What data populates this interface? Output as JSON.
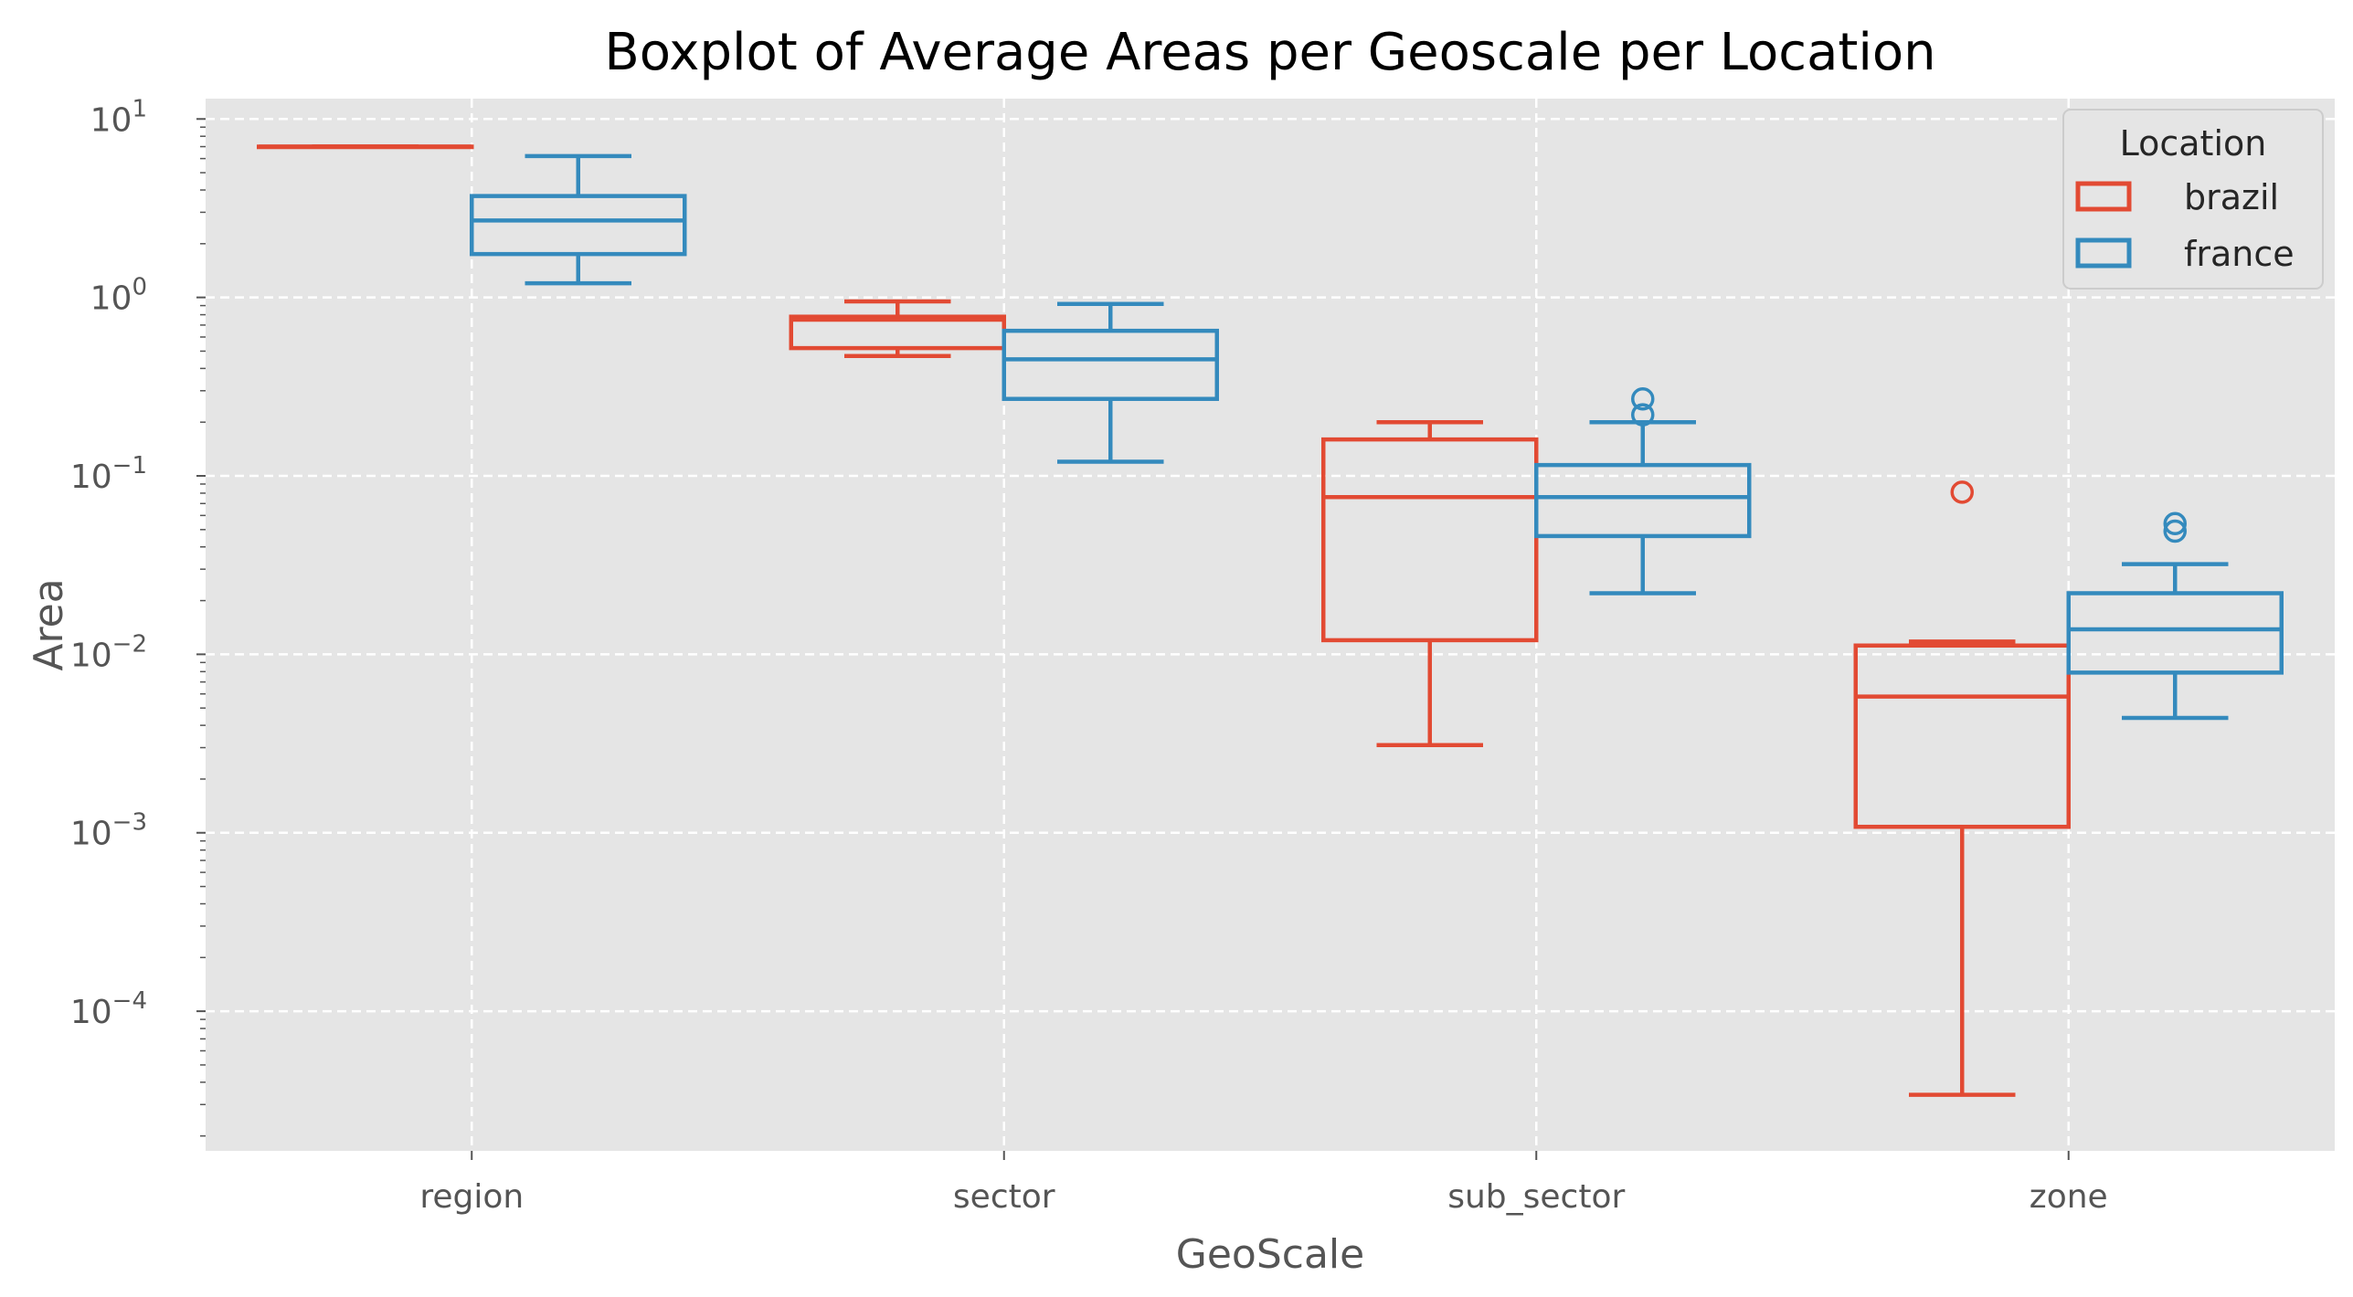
{
  "chart_data": {
    "type": "boxplot",
    "title": "Boxplot of Average Areas per Geoscale per Location",
    "xlabel": "GeoScale",
    "ylabel": "Area",
    "yscale": "log",
    "ylim": [
      1.65e-05,
      13
    ],
    "yticks": [
      {
        "value": 0.0001,
        "base": "10",
        "exp": "−4"
      },
      {
        "value": 0.001,
        "base": "10",
        "exp": "−3"
      },
      {
        "value": 0.01,
        "base": "10",
        "exp": "−2"
      },
      {
        "value": 0.1,
        "base": "10",
        "exp": "−1"
      },
      {
        "value": 1,
        "base": "10",
        "exp": "0"
      },
      {
        "value": 10,
        "base": "10",
        "exp": "1"
      }
    ],
    "grid": true,
    "legend": {
      "title": "Location",
      "placement": "upper right"
    },
    "categories": [
      "region",
      "sector",
      "sub_sector",
      "zone"
    ],
    "series": [
      {
        "name": "brazil",
        "color": "#E24A33",
        "boxes": [
          {
            "whislo": 7.0,
            "q1": 7.0,
            "med": 7.0,
            "q3": 7.0,
            "whishi": 7.0,
            "fliers": []
          },
          {
            "whislo": 0.47,
            "q1": 0.52,
            "med": 0.75,
            "q3": 0.78,
            "whishi": 0.95,
            "fliers": []
          },
          {
            "whislo": 0.0031,
            "q1": 0.012,
            "med": 0.076,
            "q3": 0.16,
            "whishi": 0.2,
            "fliers": []
          },
          {
            "whislo": 3.4e-05,
            "q1": 0.00108,
            "med": 0.0058,
            "q3": 0.0112,
            "whishi": 0.0118,
            "fliers": [
              0.081
            ]
          }
        ]
      },
      {
        "name": "france",
        "color": "#348ABD",
        "boxes": [
          {
            "whislo": 1.2,
            "q1": 1.75,
            "med": 2.7,
            "q3": 3.7,
            "whishi": 6.2,
            "fliers": []
          },
          {
            "whislo": 0.12,
            "q1": 0.27,
            "med": 0.45,
            "q3": 0.65,
            "whishi": 0.92,
            "fliers": []
          },
          {
            "whislo": 0.022,
            "q1": 0.046,
            "med": 0.076,
            "q3": 0.115,
            "whishi": 0.2,
            "fliers": [
              0.22,
              0.27
            ]
          },
          {
            "whislo": 0.0044,
            "q1": 0.0079,
            "med": 0.0138,
            "q3": 0.022,
            "whishi": 0.032,
            "fliers": [
              0.049,
              0.054
            ]
          }
        ]
      }
    ]
  }
}
